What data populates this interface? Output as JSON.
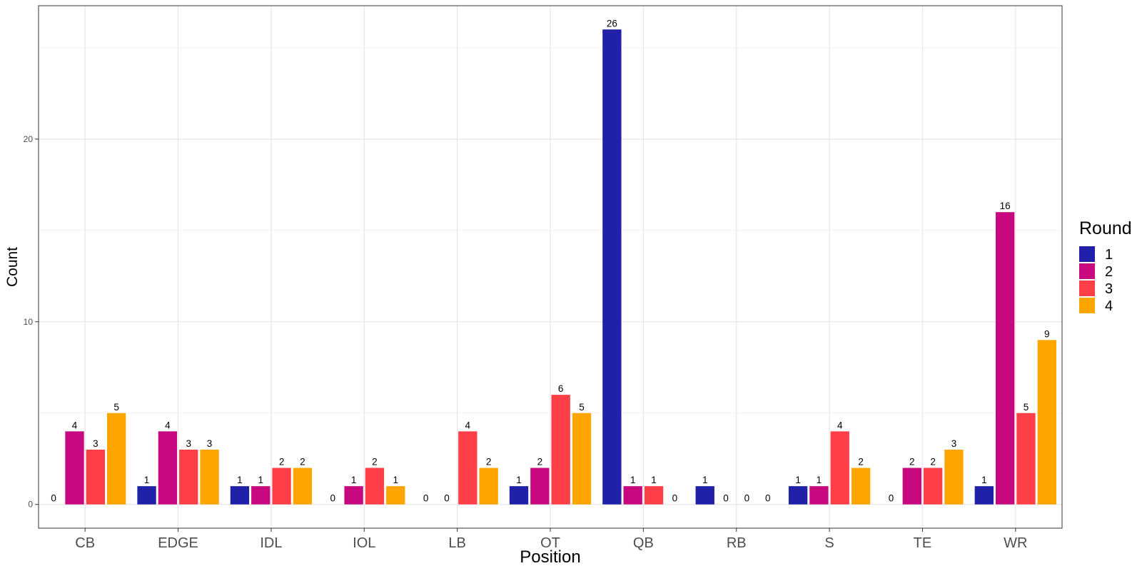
{
  "chart_data": {
    "type": "bar",
    "title": "",
    "xlabel": "Position",
    "ylabel": "Count",
    "ylim": [
      -1.3,
      27.3
    ],
    "yticks": [
      0,
      10,
      20
    ],
    "grid": true,
    "legend": {
      "title": "Round",
      "placement": "right"
    },
    "categories": [
      "CB",
      "EDGE",
      "IDL",
      "IOL",
      "LB",
      "OT",
      "QB",
      "RB",
      "S",
      "TE",
      "WR"
    ],
    "series": [
      {
        "name": "1",
        "color": "#2020A8",
        "values": [
          0,
          1,
          1,
          0,
          0,
          1,
          26,
          1,
          1,
          0,
          1
        ]
      },
      {
        "name": "2",
        "color": "#C8087E",
        "values": [
          4,
          4,
          1,
          1,
          0,
          2,
          1,
          0,
          1,
          2,
          16
        ]
      },
      {
        "name": "3",
        "color": "#FF3F48",
        "values": [
          3,
          3,
          2,
          2,
          4,
          6,
          1,
          0,
          4,
          2,
          5
        ]
      },
      {
        "name": "4",
        "color": "#FFA500",
        "values": [
          5,
          3,
          2,
          1,
          2,
          5,
          0,
          0,
          2,
          3,
          9
        ]
      }
    ]
  }
}
